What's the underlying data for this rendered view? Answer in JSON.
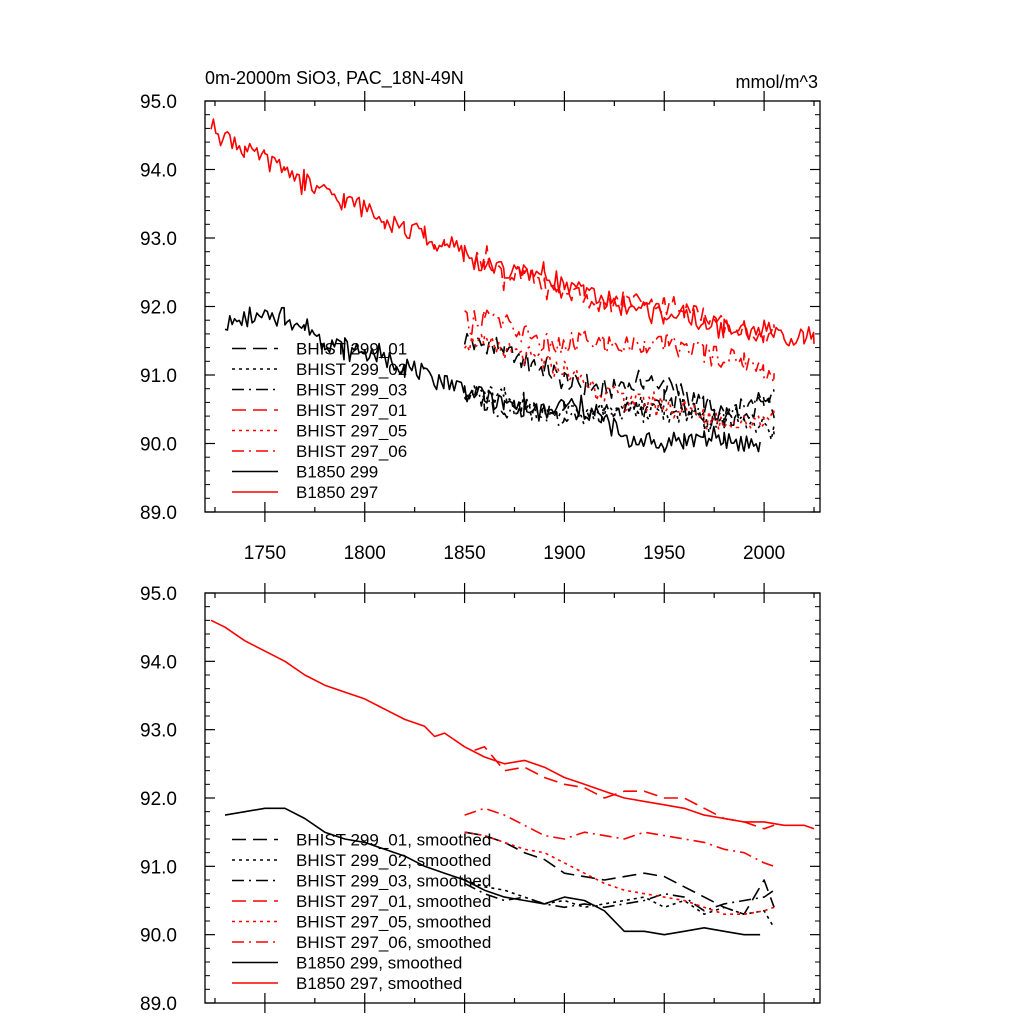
{
  "colors": {
    "black": "#000000",
    "red": "#ff0000",
    "background": "#ffffff"
  },
  "chart_data": [
    {
      "type": "line",
      "title": "0m-2000m SiO3, PAC_18N-49N",
      "units": "mmol/m^3",
      "xlim": [
        1720,
        2028
      ],
      "ylim": [
        89.0,
        95.0
      ],
      "xticks": [
        1750,
        1800,
        1850,
        1900,
        1950,
        2000
      ],
      "xtick_labels": [
        "1750",
        "1800",
        "1850",
        "1900",
        "1950",
        "2000"
      ],
      "yticks": [
        89.0,
        90.0,
        91.0,
        92.0,
        93.0,
        94.0,
        95.0
      ],
      "ytick_labels": [
        "89.0",
        "90.0",
        "91.0",
        "92.0",
        "93.0",
        "94.0",
        "95.0"
      ],
      "grid": false,
      "legend_position": "lower-left",
      "series": [
        {
          "name": "BHIST 299_01",
          "color": "#000000",
          "dash": "dash",
          "x": [
            1850,
            1860,
            1870,
            1880,
            1890,
            1900,
            1910,
            1920,
            1930,
            1940,
            1950,
            1960,
            1970,
            1980,
            1990,
            2000,
            2005
          ],
          "y": [
            91.5,
            91.45,
            91.35,
            91.2,
            91.1,
            90.9,
            90.85,
            90.8,
            90.85,
            90.9,
            90.85,
            90.7,
            90.55,
            90.4,
            90.3,
            90.8,
            90.4
          ]
        },
        {
          "name": "BHIST 299_02",
          "color": "#000000",
          "dash": "dot",
          "x": [
            1850,
            1860,
            1870,
            1880,
            1890,
            1900,
            1910,
            1920,
            1930,
            1940,
            1950,
            1960,
            1970,
            1980,
            1990,
            2000,
            2005
          ],
          "y": [
            90.8,
            90.7,
            90.65,
            90.55,
            90.45,
            90.5,
            90.4,
            90.45,
            90.5,
            90.55,
            90.4,
            90.5,
            90.3,
            90.4,
            90.3,
            90.35,
            90.1
          ]
        },
        {
          "name": "BHIST 299_03",
          "color": "#000000",
          "dash": "dashdot",
          "x": [
            1850,
            1860,
            1870,
            1880,
            1890,
            1900,
            1910,
            1920,
            1930,
            1940,
            1950,
            1960,
            1970,
            1980,
            1990,
            2000,
            2005
          ],
          "y": [
            90.75,
            90.6,
            90.5,
            90.55,
            90.45,
            90.4,
            90.45,
            90.4,
            90.45,
            90.5,
            90.6,
            90.55,
            90.35,
            90.45,
            90.5,
            90.55,
            90.65
          ]
        },
        {
          "name": "BHIST 297_01",
          "color": "#ff0000",
          "dash": "dash",
          "x": [
            1855,
            1860,
            1870,
            1880,
            1890,
            1900,
            1910,
            1920,
            1930,
            1940,
            1950,
            1960,
            1970,
            1980,
            1990,
            2000,
            2005
          ],
          "y": [
            92.7,
            92.75,
            92.4,
            92.45,
            92.3,
            92.2,
            92.15,
            92.0,
            92.1,
            92.1,
            92.0,
            92.0,
            91.85,
            91.7,
            91.65,
            91.55,
            91.6
          ]
        },
        {
          "name": "BHIST 297_05",
          "color": "#ff0000",
          "dash": "dot",
          "x": [
            1850,
            1860,
            1870,
            1880,
            1890,
            1900,
            1910,
            1920,
            1930,
            1940,
            1950,
            1960,
            1970,
            1980,
            1990,
            2000,
            2005
          ],
          "y": [
            91.5,
            91.45,
            91.35,
            91.25,
            91.2,
            91.05,
            90.9,
            90.75,
            90.65,
            90.6,
            90.55,
            90.5,
            90.4,
            90.3,
            90.3,
            90.35,
            90.4
          ]
        },
        {
          "name": "BHIST 297_06",
          "color": "#ff0000",
          "dash": "dashdot",
          "x": [
            1850,
            1860,
            1870,
            1880,
            1890,
            1900,
            1910,
            1920,
            1930,
            1940,
            1950,
            1960,
            1970,
            1980,
            1990,
            2000,
            2005
          ],
          "y": [
            91.75,
            91.85,
            91.75,
            91.6,
            91.45,
            91.4,
            91.5,
            91.45,
            91.4,
            91.5,
            91.45,
            91.4,
            91.35,
            91.25,
            91.2,
            91.05,
            91.0
          ]
        },
        {
          "name": "B1850 299",
          "color": "#000000",
          "dash": "solid",
          "x": [
            1730,
            1740,
            1750,
            1760,
            1770,
            1780,
            1790,
            1800,
            1810,
            1820,
            1830,
            1840,
            1850,
            1860,
            1870,
            1880,
            1890,
            1900,
            1910,
            1920,
            1930,
            1940,
            1950,
            1960,
            1970,
            1980,
            1990,
            1998
          ],
          "y": [
            91.75,
            91.8,
            91.85,
            91.85,
            91.7,
            91.5,
            91.4,
            91.35,
            91.25,
            91.15,
            91.0,
            90.9,
            90.8,
            90.65,
            90.55,
            90.5,
            90.45,
            90.55,
            90.5,
            90.35,
            90.05,
            90.05,
            90.0,
            90.05,
            90.1,
            90.05,
            90.0,
            90.0
          ]
        },
        {
          "name": "B1850 297",
          "color": "#ff0000",
          "dash": "solid",
          "x": [
            1723,
            1730,
            1740,
            1750,
            1760,
            1770,
            1780,
            1790,
            1800,
            1810,
            1820,
            1830,
            1835,
            1840,
            1850,
            1860,
            1870,
            1880,
            1890,
            1900,
            1910,
            1920,
            1930,
            1940,
            1950,
            1960,
            1970,
            1980,
            1990,
            2000,
            2010,
            2020,
            2025
          ],
          "y": [
            94.6,
            94.5,
            94.3,
            94.15,
            94.0,
            93.8,
            93.65,
            93.55,
            93.45,
            93.3,
            93.15,
            93.05,
            92.9,
            92.95,
            92.75,
            92.6,
            92.5,
            92.55,
            92.45,
            92.3,
            92.2,
            92.1,
            92.0,
            91.95,
            91.9,
            91.85,
            91.75,
            91.7,
            91.65,
            91.65,
            91.6,
            91.6,
            91.55
          ]
        }
      ]
    },
    {
      "type": "line",
      "title": "",
      "units": "",
      "xlim": [
        1720,
        2028
      ],
      "ylim": [
        89.0,
        95.0
      ],
      "xticks": [
        1750,
        1800,
        1850,
        1900,
        1950,
        2000
      ],
      "xtick_labels": [],
      "yticks": [
        89.0,
        90.0,
        91.0,
        92.0,
        93.0,
        94.0,
        95.0
      ],
      "ytick_labels": [
        "89.0",
        "90.0",
        "91.0",
        "92.0",
        "93.0",
        "94.0",
        "95.0"
      ],
      "grid": false,
      "legend_position": "lower-left",
      "series": [
        {
          "name": "BHIST 299_01, smoothed",
          "color": "#000000",
          "dash": "dash",
          "x": [
            1850,
            1860,
            1870,
            1880,
            1890,
            1900,
            1910,
            1920,
            1930,
            1940,
            1950,
            1960,
            1970,
            1980,
            1990,
            2000,
            2005
          ],
          "y": [
            91.5,
            91.45,
            91.35,
            91.2,
            91.1,
            90.9,
            90.85,
            90.8,
            90.85,
            90.9,
            90.85,
            90.7,
            90.55,
            90.4,
            90.3,
            90.8,
            90.4
          ]
        },
        {
          "name": "BHIST 299_02, smoothed",
          "color": "#000000",
          "dash": "dot",
          "x": [
            1850,
            1860,
            1870,
            1880,
            1890,
            1900,
            1910,
            1920,
            1930,
            1940,
            1950,
            1960,
            1970,
            1980,
            1990,
            2000,
            2005
          ],
          "y": [
            90.8,
            90.7,
            90.65,
            90.55,
            90.45,
            90.5,
            90.4,
            90.45,
            90.5,
            90.55,
            90.4,
            90.5,
            90.3,
            90.4,
            90.3,
            90.35,
            90.1
          ]
        },
        {
          "name": "BHIST 299_03, smoothed",
          "color": "#000000",
          "dash": "dashdot",
          "x": [
            1850,
            1860,
            1870,
            1880,
            1890,
            1900,
            1910,
            1920,
            1930,
            1940,
            1950,
            1960,
            1970,
            1980,
            1990,
            2000,
            2005
          ],
          "y": [
            90.75,
            90.6,
            90.5,
            90.55,
            90.45,
            90.4,
            90.45,
            90.4,
            90.45,
            90.5,
            90.6,
            90.55,
            90.35,
            90.45,
            90.5,
            90.55,
            90.65
          ]
        },
        {
          "name": "BHIST 297_01, smoothed",
          "color": "#ff0000",
          "dash": "dash",
          "x": [
            1855,
            1860,
            1870,
            1880,
            1890,
            1900,
            1910,
            1920,
            1930,
            1940,
            1950,
            1960,
            1970,
            1980,
            1990,
            2000,
            2005
          ],
          "y": [
            92.7,
            92.75,
            92.4,
            92.45,
            92.3,
            92.2,
            92.15,
            92.0,
            92.1,
            92.1,
            92.0,
            92.0,
            91.85,
            91.7,
            91.65,
            91.55,
            91.6
          ]
        },
        {
          "name": "BHIST 297_05, smoothed",
          "color": "#ff0000",
          "dash": "dot",
          "x": [
            1850,
            1860,
            1870,
            1880,
            1890,
            1900,
            1910,
            1920,
            1930,
            1940,
            1950,
            1960,
            1970,
            1980,
            1990,
            2000,
            2005
          ],
          "y": [
            91.5,
            91.45,
            91.35,
            91.25,
            91.2,
            91.05,
            90.9,
            90.75,
            90.65,
            90.6,
            90.55,
            90.5,
            90.4,
            90.3,
            90.3,
            90.35,
            90.4
          ]
        },
        {
          "name": "BHIST 297_06, smoothed",
          "color": "#ff0000",
          "dash": "dashdot",
          "x": [
            1850,
            1860,
            1870,
            1880,
            1890,
            1900,
            1910,
            1920,
            1930,
            1940,
            1950,
            1960,
            1970,
            1980,
            1990,
            2000,
            2005
          ],
          "y": [
            91.75,
            91.85,
            91.75,
            91.6,
            91.45,
            91.4,
            91.5,
            91.45,
            91.4,
            91.5,
            91.45,
            91.4,
            91.35,
            91.25,
            91.2,
            91.05,
            91.0
          ]
        },
        {
          "name": "B1850 299, smoothed",
          "color": "#000000",
          "dash": "solid",
          "x": [
            1730,
            1740,
            1750,
            1760,
            1770,
            1780,
            1790,
            1800,
            1810,
            1820,
            1830,
            1840,
            1850,
            1860,
            1870,
            1880,
            1890,
            1900,
            1910,
            1920,
            1930,
            1940,
            1950,
            1960,
            1970,
            1980,
            1990,
            1998
          ],
          "y": [
            91.75,
            91.8,
            91.85,
            91.85,
            91.7,
            91.5,
            91.4,
            91.35,
            91.25,
            91.15,
            91.0,
            90.9,
            90.8,
            90.65,
            90.55,
            90.5,
            90.45,
            90.55,
            90.5,
            90.35,
            90.05,
            90.05,
            90.0,
            90.05,
            90.1,
            90.05,
            90.0,
            90.0
          ]
        },
        {
          "name": "B1850 297, smoothed",
          "color": "#ff0000",
          "dash": "solid",
          "x": [
            1723,
            1730,
            1740,
            1750,
            1760,
            1770,
            1780,
            1790,
            1800,
            1810,
            1820,
            1830,
            1835,
            1840,
            1850,
            1860,
            1870,
            1880,
            1890,
            1900,
            1910,
            1920,
            1930,
            1940,
            1950,
            1960,
            1970,
            1980,
            1990,
            2000,
            2010,
            2020,
            2025
          ],
          "y": [
            94.6,
            94.5,
            94.3,
            94.15,
            94.0,
            93.8,
            93.65,
            93.55,
            93.45,
            93.3,
            93.15,
            93.05,
            92.9,
            92.95,
            92.75,
            92.6,
            92.5,
            92.55,
            92.45,
            92.3,
            92.2,
            92.1,
            92.0,
            91.95,
            91.9,
            91.85,
            91.75,
            91.7,
            91.65,
            91.65,
            91.6,
            91.6,
            91.55
          ]
        }
      ]
    }
  ]
}
